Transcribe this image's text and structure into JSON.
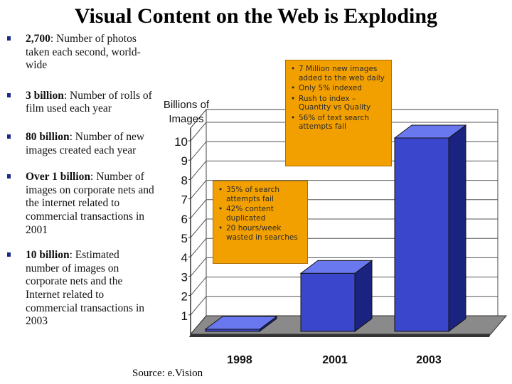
{
  "title": "Visual Content on the Web is Exploding",
  "bullets": [
    {
      "bold": "2,700",
      "text": ": Number of photos taken each second, world-wide"
    },
    {
      "bold": "3 billion",
      "text": ": Number of rolls of film used each year"
    },
    {
      "bold": "80 billion",
      "text": ": Number of new images created each year"
    },
    {
      "bold": "Over 1 billion",
      "text": ": Number of images on corporate nets and the internet related to commercial transactions in 2001"
    },
    {
      "bold": "10 billion",
      "text": ": Estimated number of images on corporate nets and the Internet related to commercial transactions in 2003"
    }
  ],
  "source": "Source: e.Vision",
  "callouts": [
    {
      "items": [
        "7 Million new images added to the web daily",
        "Only 5% indexed",
        "Rush to index – Quantity vs Quality",
        "56% of text search attempts fail"
      ]
    },
    {
      "items": [
        "35% of search attempts fail",
        "42% content duplicated",
        "20 hours/week wasted in searches"
      ]
    }
  ],
  "colors": {
    "bar_front": "#3a46cc",
    "bar_top": "#6a78f0",
    "bar_side": "#1a2480",
    "callout": "#f2a000"
  },
  "chart_data": {
    "type": "bar",
    "categories": [
      "1998",
      "2001",
      "2003"
    ],
    "values": [
      0.1,
      3,
      10
    ],
    "ylabel": "Billions of Images",
    "yticks": [
      1,
      2,
      3,
      4,
      5,
      6,
      7,
      8,
      9,
      10
    ],
    "ylim": [
      0,
      10
    ],
    "grid": true,
    "style": "3d"
  }
}
